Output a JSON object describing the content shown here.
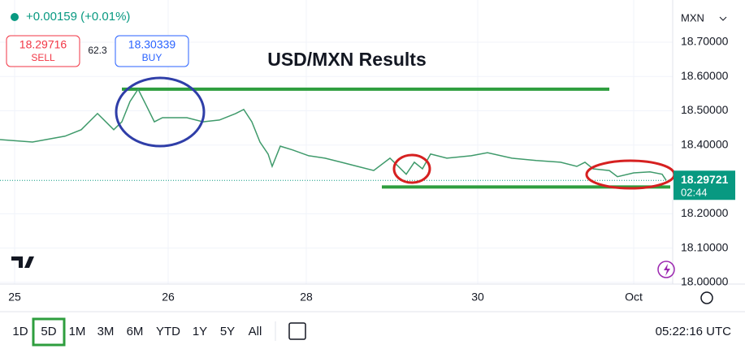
{
  "header": {
    "change": "+0.00159 (+0.01%)",
    "sell_price": "18.29716",
    "sell_label": "SELL",
    "spread": "62.3",
    "buy_price": "18.30339",
    "buy_label": "BUY"
  },
  "currency": "MXN",
  "chart_data": {
    "type": "line",
    "title": "USD/MXN Results",
    "x": [
      0,
      4,
      8,
      10,
      12,
      14,
      15,
      16,
      17,
      18,
      19,
      20,
      23,
      25,
      27,
      29,
      30,
      31,
      32,
      33,
      33.5,
      34.5,
      36,
      38,
      40,
      42,
      44,
      46,
      48,
      50,
      51,
      52,
      53,
      55,
      58,
      60,
      63,
      66,
      69,
      71,
      72,
      73,
      75,
      76,
      78,
      80,
      81.5,
      82
    ],
    "values": [
      18.416,
      18.409,
      18.426,
      18.445,
      18.492,
      18.445,
      18.468,
      18.527,
      18.563,
      18.516,
      18.468,
      18.48,
      18.48,
      18.468,
      18.473,
      18.492,
      18.504,
      18.468,
      18.409,
      18.374,
      18.338,
      18.397,
      18.386,
      18.369,
      18.362,
      18.35,
      18.338,
      18.326,
      18.362,
      18.315,
      18.35,
      18.331,
      18.374,
      18.362,
      18.369,
      18.378,
      18.362,
      18.355,
      18.35,
      18.338,
      18.35,
      18.331,
      18.326,
      18.308,
      18.319,
      18.322,
      18.315,
      18.297
    ],
    "color": "#3f9a6b",
    "xlim": [
      0,
      82.8
    ],
    "ylim": [
      17.995,
      18.823
    ],
    "xticks": [
      {
        "value": 1.8,
        "label": "25"
      },
      {
        "value": 20.7,
        "label": "26"
      },
      {
        "value": 37.7,
        "label": "28"
      },
      {
        "value": 58.8,
        "label": "30"
      },
      {
        "value": 78,
        "label": "Oct"
      }
    ],
    "yticks": [
      {
        "value": 18.0,
        "label": "18.00000"
      },
      {
        "value": 18.1,
        "label": "18.10000"
      },
      {
        "value": 18.2,
        "label": "18.20000"
      },
      {
        "value": 18.4,
        "label": "18.40000"
      },
      {
        "value": 18.5,
        "label": "18.50000"
      },
      {
        "value": 18.6,
        "label": "18.60000"
      },
      {
        "value": 18.7,
        "label": "18.70000"
      }
    ],
    "current_price": 18.29721,
    "countdown": "02:44",
    "lines": [
      {
        "value": 18.563,
        "x": [
          15,
          75
        ],
        "color": "#2e9e3e"
      },
      {
        "value": 18.278,
        "x": [
          47,
          82.5
        ],
        "color": "#2e9e3e"
      }
    ],
    "grid": true
  },
  "toolbar": {
    "ranges": [
      "1D",
      "5D",
      "1M",
      "3M",
      "6M",
      "YTD",
      "1Y",
      "5Y",
      "All"
    ],
    "active": 1
  },
  "clock": "05:22:16 UTC"
}
